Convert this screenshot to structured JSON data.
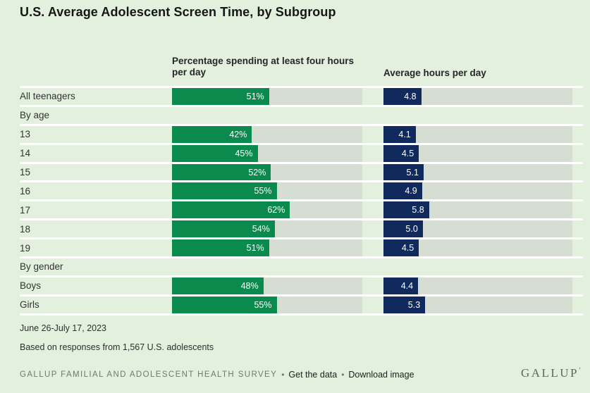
{
  "title": "U.S. Average Adolescent Screen Time, by Subgroup",
  "colors": {
    "background": "#e3f0de",
    "track": "#d6ddd2",
    "green": "#0a8a4c",
    "navy": "#112a5e",
    "separator": "#ffffff"
  },
  "columns": {
    "percent": {
      "header": "Percentage spending at least four hours per day",
      "max": 100
    },
    "hours": {
      "header": "Average hours per day",
      "max": 24
    }
  },
  "rows": [
    {
      "type": "data",
      "label": "All teenagers",
      "percent": 51,
      "percent_label": "51%",
      "hours": 4.8,
      "hours_label": "4.8"
    },
    {
      "type": "section",
      "label": "By age"
    },
    {
      "type": "data",
      "label": "13",
      "percent": 42,
      "percent_label": "42%",
      "hours": 4.1,
      "hours_label": "4.1"
    },
    {
      "type": "data",
      "label": "14",
      "percent": 45,
      "percent_label": "45%",
      "hours": 4.5,
      "hours_label": "4.5"
    },
    {
      "type": "data",
      "label": "15",
      "percent": 52,
      "percent_label": "52%",
      "hours": 5.1,
      "hours_label": "5.1"
    },
    {
      "type": "data",
      "label": "16",
      "percent": 55,
      "percent_label": "55%",
      "hours": 4.9,
      "hours_label": "4.9"
    },
    {
      "type": "data",
      "label": "17",
      "percent": 62,
      "percent_label": "62%",
      "hours": 5.8,
      "hours_label": "5.8"
    },
    {
      "type": "data",
      "label": "18",
      "percent": 54,
      "percent_label": "54%",
      "hours": 5.0,
      "hours_label": "5.0"
    },
    {
      "type": "data",
      "label": "19",
      "percent": 51,
      "percent_label": "51%",
      "hours": 4.5,
      "hours_label": "4.5"
    },
    {
      "type": "section",
      "label": "By gender"
    },
    {
      "type": "data",
      "label": "Boys",
      "percent": 48,
      "percent_label": "48%",
      "hours": 4.4,
      "hours_label": "4.4"
    },
    {
      "type": "data",
      "label": "Girls",
      "percent": 55,
      "percent_label": "55%",
      "hours": 5.3,
      "hours_label": "5.3"
    }
  ],
  "footer": {
    "date": "June 26-July 17, 2023",
    "basis": "Based on responses from 1,567 U.S. adolescents",
    "survey": "GALLUP FAMILIAL AND ADOLESCENT HEALTH SURVEY",
    "bullet": "•",
    "links": [
      "Get the data",
      "Download image"
    ],
    "logo_text": "GALLUP",
    "logo_mark": "’"
  },
  "chart_data": {
    "type": "bar",
    "title": "U.S. Average Adolescent Screen Time, by Subgroup",
    "orientation": "horizontal",
    "categories": [
      "All teenagers",
      "13",
      "14",
      "15",
      "16",
      "17",
      "18",
      "19",
      "Boys",
      "Girls"
    ],
    "sections": [
      {
        "label": "By age",
        "categories": [
          "13",
          "14",
          "15",
          "16",
          "17",
          "18",
          "19"
        ]
      },
      {
        "label": "By gender",
        "categories": [
          "Boys",
          "Girls"
        ]
      }
    ],
    "series": [
      {
        "name": "Percentage spending at least four hours per day",
        "unit": "%",
        "axis_range": [
          0,
          100
        ],
        "values": [
          51,
          42,
          45,
          52,
          55,
          62,
          54,
          51,
          48,
          55
        ]
      },
      {
        "name": "Average hours per day",
        "unit": "hours",
        "axis_range": [
          0,
          24
        ],
        "values": [
          4.8,
          4.1,
          4.5,
          5.1,
          4.9,
          5.8,
          5.0,
          4.5,
          4.4,
          5.3
        ]
      }
    ],
    "legend": "none",
    "grid": "off",
    "data_labels": "inside-bar-end",
    "footnotes": [
      "June 26-July 17, 2023",
      "Based on responses from 1,567 U.S. adolescents"
    ],
    "source": "GALLUP FAMILIAL AND ADOLESCENT HEALTH SURVEY"
  }
}
